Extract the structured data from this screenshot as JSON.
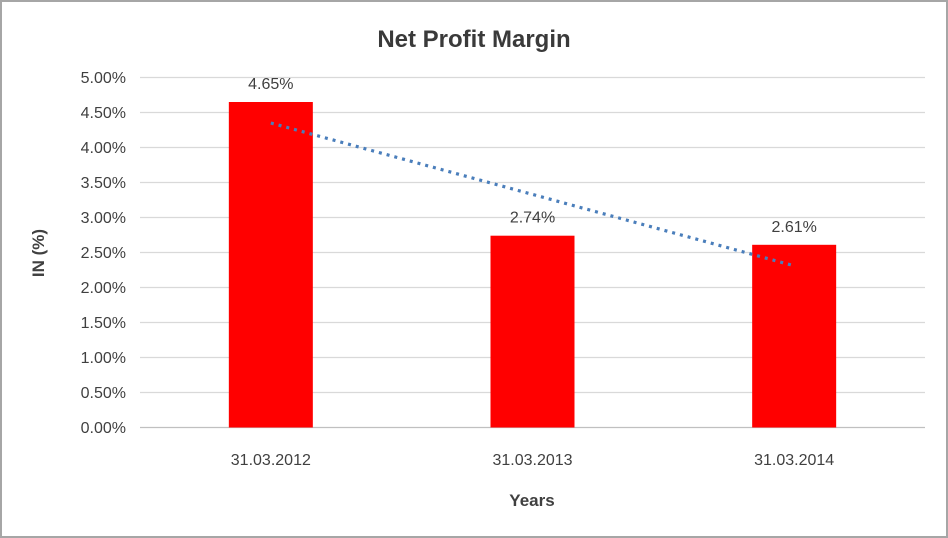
{
  "chart_data": {
    "type": "bar",
    "title": "Net Profit Margin",
    "xlabel": "Years",
    "ylabel": "IN (%)",
    "categories": [
      "31.03.2012",
      "31.03.2013",
      "31.03.2014"
    ],
    "values": [
      4.65,
      2.74,
      2.61
    ],
    "data_labels": [
      "4.65%",
      "2.74%",
      "2.61%"
    ],
    "ylim": [
      0,
      5
    ],
    "yticks": [
      0,
      0.5,
      1,
      1.5,
      2,
      2.5,
      3,
      3.5,
      4,
      4.5,
      5
    ],
    "ytick_labels": [
      "0.00%",
      "0.50%",
      "1.00%",
      "1.50%",
      "2.00%",
      "2.50%",
      "3.00%",
      "3.50%",
      "4.00%",
      "4.50%",
      "5.00%"
    ],
    "grid": "horizontal",
    "legend": "none",
    "bar_color": "#ff0000",
    "gridline_color": "#d9d9d9",
    "baseline_color": "#c0c0c0",
    "text_color": "#404040",
    "trendline": {
      "style": "dotted",
      "color": "#4a7ebb",
      "start_value": 4.35,
      "end_value": 2.31
    }
  }
}
